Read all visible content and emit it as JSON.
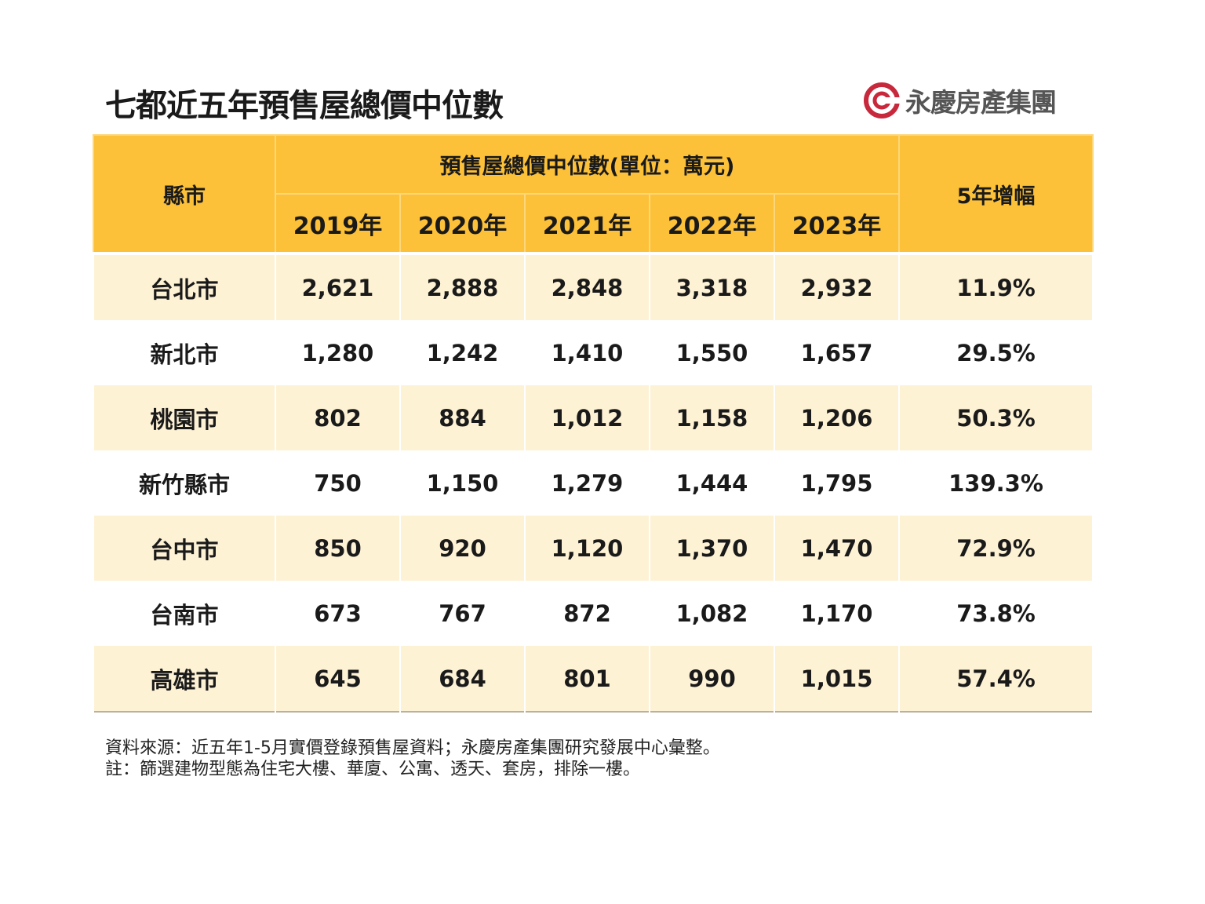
{
  "title": "七都近五年預售屋總價中位數",
  "logo_text": "永慶房產集團",
  "colors": {
    "header": "#FCC138",
    "row_alt": "#FEF2D5",
    "logo_red": "#C8283C"
  },
  "chart_data": {
    "type": "table",
    "title": "七都近五年預售屋總價中位數",
    "header": {
      "city": "縣市",
      "group": "預售屋總價中位數(單位：萬元)",
      "years": [
        "2019年",
        "2020年",
        "2021年",
        "2022年",
        "2023年"
      ],
      "growth": "5年增幅"
    },
    "rows": [
      {
        "city": "台北市",
        "values": [
          "2,621",
          "2,888",
          "2,848",
          "3,318",
          "2,932"
        ],
        "growth": "11.9%"
      },
      {
        "city": "新北市",
        "values": [
          "1,280",
          "1,242",
          "1,410",
          "1,550",
          "1,657"
        ],
        "growth": "29.5%"
      },
      {
        "city": "桃園市",
        "values": [
          "802",
          "884",
          "1,012",
          "1,158",
          "1,206"
        ],
        "growth": "50.3%"
      },
      {
        "city": "新竹縣市",
        "values": [
          "750",
          "1,150",
          "1,279",
          "1,444",
          "1,795"
        ],
        "growth": "139.3%"
      },
      {
        "city": "台中市",
        "values": [
          "850",
          "920",
          "1,120",
          "1,370",
          "1,470"
        ],
        "growth": "72.9%"
      },
      {
        "city": "台南市",
        "values": [
          "673",
          "767",
          "872",
          "1,082",
          "1,170"
        ],
        "growth": "73.8%"
      },
      {
        "city": "高雄市",
        "values": [
          "645",
          "684",
          "801",
          "990",
          "1,015"
        ],
        "growth": "57.4%"
      }
    ]
  },
  "notes": {
    "source": "資料來源：近五年1-5月實價登錄預售屋資料；永慶房產集團研究發展中心彙整。",
    "remark": "註：篩選建物型態為住宅大樓、華廈、公寓、透天、套房，排除一樓。"
  }
}
